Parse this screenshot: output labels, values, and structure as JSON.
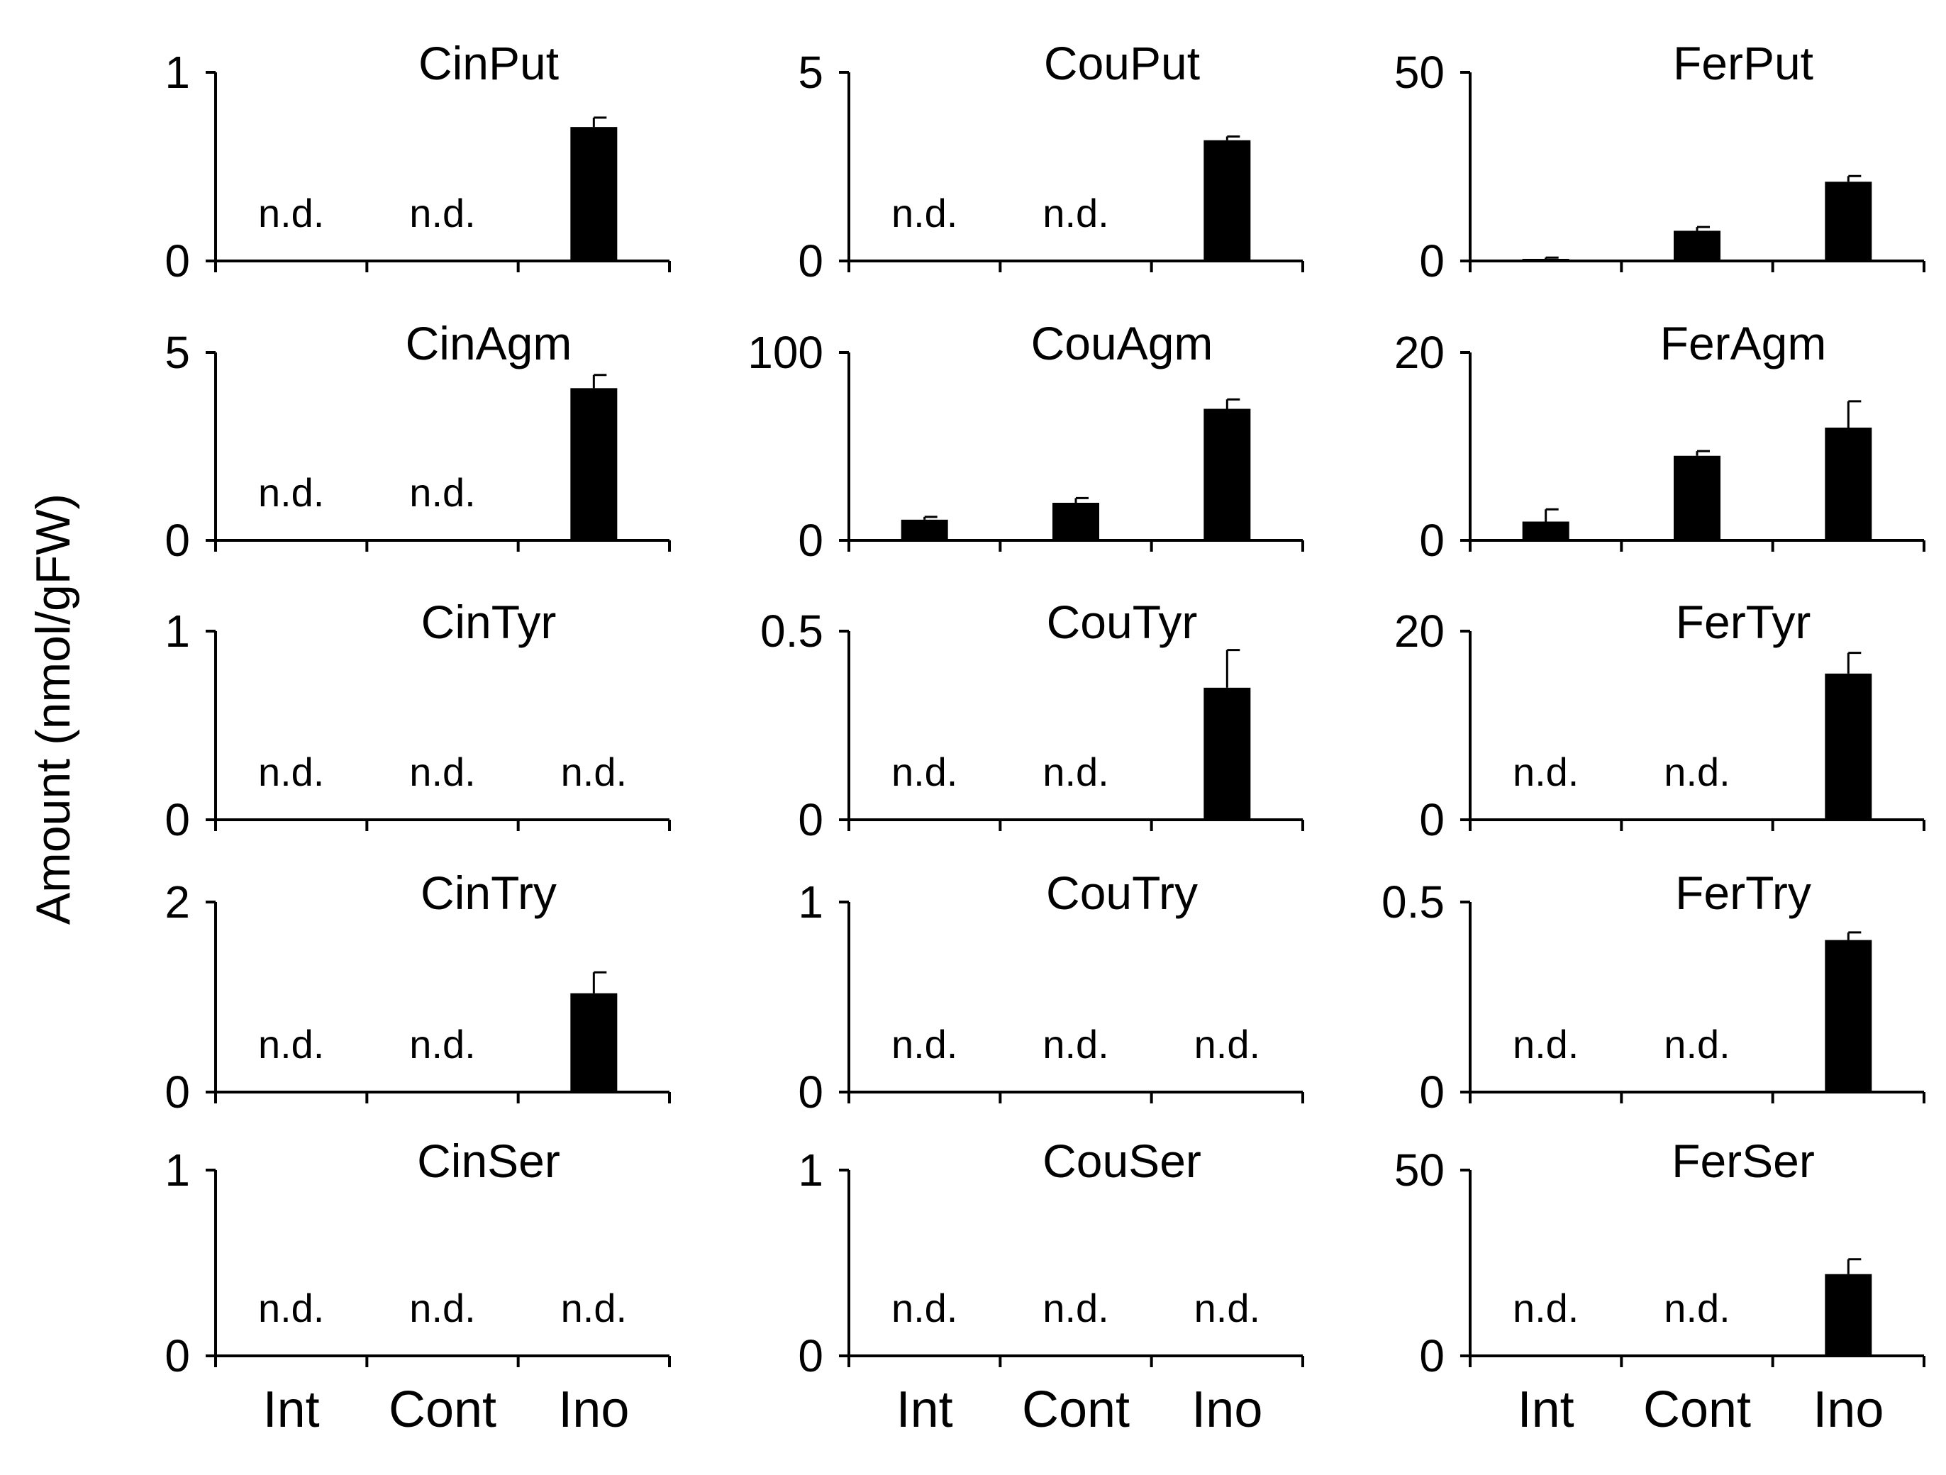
{
  "figure": {
    "ylabel": "Amount (nmol/gFW)",
    "categories": [
      "Int",
      "Cont",
      "Ino"
    ],
    "nd_label": "n.d."
  },
  "chart_data": [
    {
      "type": "bar",
      "title": "CinPut",
      "categories": [
        "Int",
        "Cont",
        "Ino"
      ],
      "values": [
        null,
        null,
        0.71
      ],
      "errors": [
        null,
        null,
        0.05
      ],
      "not_detected": [
        true,
        true,
        false
      ],
      "ylim": [
        0,
        1
      ],
      "yticks": [
        "0",
        "1"
      ],
      "xlabel": "",
      "ylabel": "Amount (nmol/gFW)"
    },
    {
      "type": "bar",
      "title": "CouPut",
      "categories": [
        "Int",
        "Cont",
        "Ino"
      ],
      "values": [
        null,
        null,
        3.2
      ],
      "errors": [
        null,
        null,
        0.1
      ],
      "not_detected": [
        true,
        true,
        false
      ],
      "ylim": [
        0,
        5
      ],
      "yticks": [
        "0",
        "5"
      ],
      "xlabel": "",
      "ylabel": "Amount (nmol/gFW)"
    },
    {
      "type": "bar",
      "title": "FerPut",
      "categories": [
        "Int",
        "Cont",
        "Ino"
      ],
      "values": [
        0.3,
        8,
        21
      ],
      "errors": [
        0.6,
        1,
        1.5
      ],
      "not_detected": [
        false,
        false,
        false
      ],
      "ylim": [
        0,
        50
      ],
      "yticks": [
        "0",
        "50"
      ],
      "xlabel": "",
      "ylabel": "Amount (nmol/gFW)"
    },
    {
      "type": "bar",
      "title": "CinAgm",
      "categories": [
        "Int",
        "Cont",
        "Ino"
      ],
      "values": [
        0.03,
        0.03,
        4.05
      ],
      "errors": [
        null,
        null,
        0.35
      ],
      "not_detected": [
        true,
        true,
        false
      ],
      "ylim": [
        0,
        5
      ],
      "yticks": [
        "0",
        "5"
      ],
      "xlabel": "",
      "ylabel": "Amount (nmol/gFW)"
    },
    {
      "type": "bar",
      "title": "CouAgm",
      "categories": [
        "Int",
        "Cont",
        "Ino"
      ],
      "values": [
        11,
        20,
        70
      ],
      "errors": [
        1.5,
        2.5,
        5
      ],
      "not_detected": [
        false,
        false,
        false
      ],
      "ylim": [
        0,
        100
      ],
      "yticks": [
        "0",
        "100"
      ],
      "xlabel": "",
      "ylabel": "Amount (nmol/gFW)"
    },
    {
      "type": "bar",
      "title": "FerAgm",
      "categories": [
        "Int",
        "Cont",
        "Ino"
      ],
      "values": [
        2,
        9,
        12
      ],
      "errors": [
        1.3,
        0.5,
        2.8
      ],
      "not_detected": [
        false,
        false,
        false
      ],
      "ylim": [
        0,
        20
      ],
      "yticks": [
        "0",
        "20"
      ],
      "xlabel": "",
      "ylabel": "Amount (nmol/gFW)"
    },
    {
      "type": "bar",
      "title": "CinTyr",
      "categories": [
        "Int",
        "Cont",
        "Ino"
      ],
      "values": [
        null,
        null,
        null
      ],
      "errors": [
        null,
        null,
        null
      ],
      "not_detected": [
        true,
        true,
        true
      ],
      "ylim": [
        0,
        1
      ],
      "yticks": [
        "0",
        "1"
      ],
      "xlabel": "",
      "ylabel": "Amount (nmol/gFW)"
    },
    {
      "type": "bar",
      "title": "CouTyr",
      "categories": [
        "Int",
        "Cont",
        "Ino"
      ],
      "values": [
        null,
        null,
        0.35
      ],
      "errors": [
        null,
        null,
        0.1
      ],
      "not_detected": [
        true,
        true,
        false
      ],
      "ylim": [
        0,
        0.5
      ],
      "yticks": [
        "0",
        "0.5"
      ],
      "xlabel": "",
      "ylabel": "Amount (nmol/gFW)"
    },
    {
      "type": "bar",
      "title": "FerTyr",
      "categories": [
        "Int",
        "Cont",
        "Ino"
      ],
      "values": [
        null,
        null,
        15.5
      ],
      "errors": [
        null,
        null,
        2.2
      ],
      "not_detected": [
        true,
        true,
        false
      ],
      "ylim": [
        0,
        20
      ],
      "yticks": [
        "0",
        "20"
      ],
      "xlabel": "",
      "ylabel": "Amount (nmol/gFW)"
    },
    {
      "type": "bar",
      "title": "CinTry",
      "categories": [
        "Int",
        "Cont",
        "Ino"
      ],
      "values": [
        null,
        null,
        1.04
      ],
      "errors": [
        null,
        null,
        0.22
      ],
      "not_detected": [
        true,
        true,
        false
      ],
      "ylim": [
        0,
        2
      ],
      "yticks": [
        "0",
        "2"
      ],
      "xlabel": "",
      "ylabel": "Amount (nmol/gFW)"
    },
    {
      "type": "bar",
      "title": "CouTry",
      "categories": [
        "Int",
        "Cont",
        "Ino"
      ],
      "values": [
        null,
        null,
        null
      ],
      "errors": [
        null,
        null,
        null
      ],
      "not_detected": [
        true,
        true,
        true
      ],
      "ylim": [
        0,
        1
      ],
      "yticks": [
        "0",
        "1"
      ],
      "xlabel": "",
      "ylabel": "Amount (nmol/gFW)"
    },
    {
      "type": "bar",
      "title": "FerTry",
      "categories": [
        "Int",
        "Cont",
        "Ino"
      ],
      "values": [
        null,
        null,
        0.4
      ],
      "errors": [
        null,
        null,
        0.02
      ],
      "not_detected": [
        true,
        true,
        false
      ],
      "ylim": [
        0,
        0.5
      ],
      "yticks": [
        "0",
        "0.5"
      ],
      "xlabel": "",
      "ylabel": "Amount (nmol/gFW)"
    },
    {
      "type": "bar",
      "title": "CinSer",
      "categories": [
        "Int",
        "Cont",
        "Ino"
      ],
      "values": [
        null,
        null,
        null
      ],
      "errors": [
        null,
        null,
        null
      ],
      "not_detected": [
        true,
        true,
        true
      ],
      "ylim": [
        0,
        1
      ],
      "yticks": [
        "0",
        "1"
      ],
      "xlabel": "Int Cont Ino",
      "ylabel": "Amount (nmol/gFW)"
    },
    {
      "type": "bar",
      "title": "CouSer",
      "categories": [
        "Int",
        "Cont",
        "Ino"
      ],
      "values": [
        null,
        null,
        null
      ],
      "errors": [
        null,
        null,
        null
      ],
      "not_detected": [
        true,
        true,
        true
      ],
      "ylim": [
        0,
        1
      ],
      "yticks": [
        "0",
        "1"
      ],
      "xlabel": "Int Cont Ino",
      "ylabel": "Amount (nmol/gFW)"
    },
    {
      "type": "bar",
      "title": "FerSer",
      "categories": [
        "Int",
        "Cont",
        "Ino"
      ],
      "values": [
        null,
        null,
        22
      ],
      "errors": [
        null,
        null,
        4
      ],
      "not_detected": [
        true,
        true,
        false
      ],
      "ylim": [
        0,
        50
      ],
      "yticks": [
        "0",
        "50"
      ],
      "xlabel": "Int Cont Ino",
      "ylabel": "Amount (nmol/gFW)"
    }
  ]
}
